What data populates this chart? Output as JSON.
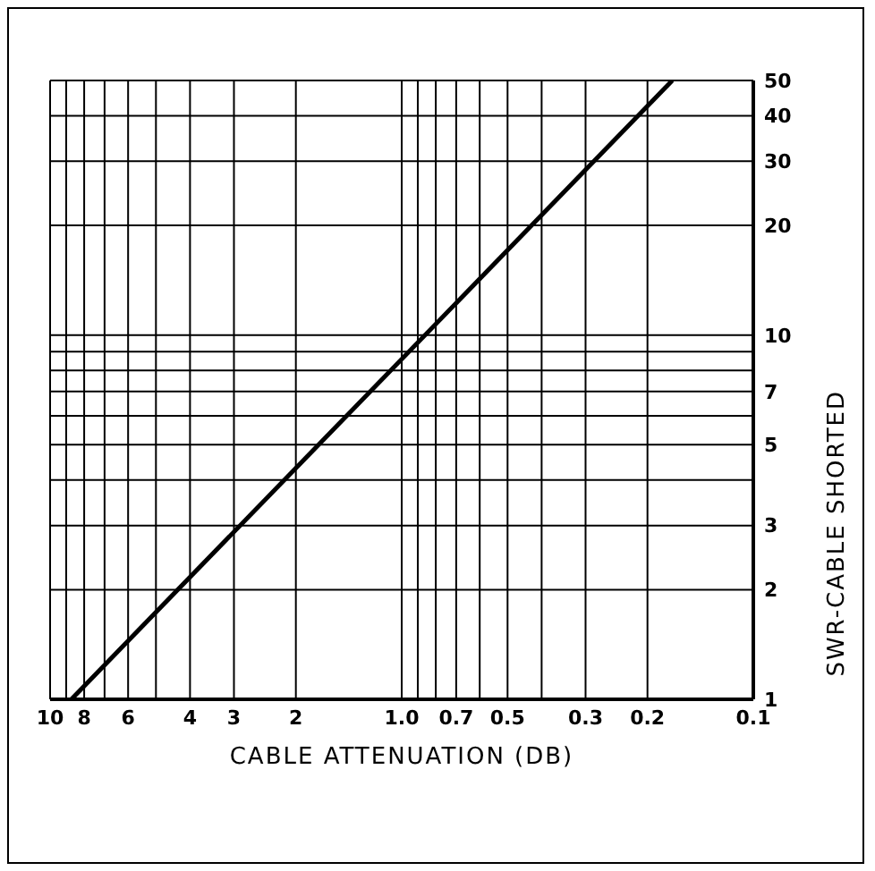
{
  "chart_data": {
    "type": "line",
    "xlabel": "CABLE ATTENUATION (DB)",
    "ylabel": "SWR-CABLE SHORTED",
    "x": [
      8.7,
      0.17
    ],
    "values": [
      1,
      50
    ],
    "color": "#000000",
    "log": "xy",
    "grid": true,
    "marker": "none",
    "xlim": [
      10,
      0.1
    ],
    "ylim": [
      1,
      50
    ],
    "xticks": [
      10,
      {
        "value": 9,
        "label": null
      },
      8,
      {
        "value": 7,
        "label": null
      },
      6,
      {
        "value": 5,
        "label": null
      },
      4,
      3,
      2,
      {
        "value": 1,
        "label": "1.0"
      },
      {
        "value": 0.9,
        "label": null
      },
      {
        "value": 0.8,
        "label": null
      },
      0.7,
      {
        "value": 0.6,
        "label": null
      },
      0.5,
      {
        "value": 0.4,
        "label": null
      },
      0.3,
      0.2,
      0.1
    ],
    "yticks": [
      1,
      2,
      3,
      {
        "value": 4,
        "label": null
      },
      5,
      {
        "value": 6,
        "label": null
      },
      7,
      {
        "value": 8,
        "label": null
      },
      {
        "value": 9,
        "label": null
      },
      10,
      20,
      30,
      40,
      50
    ]
  }
}
